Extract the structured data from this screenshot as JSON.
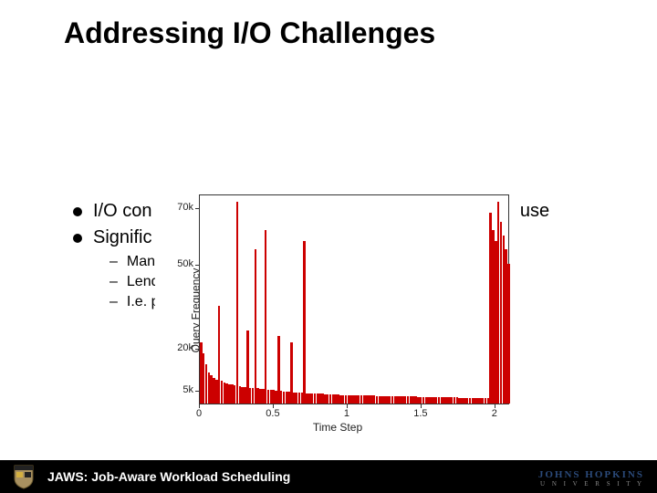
{
  "title": "Addressing I/O Challenges",
  "bullets": {
    "b1_left": "I/O con",
    "b1_right": "ent use",
    "b2_left": "Signific",
    "sub1": "Many",
    "sub2": "Lend",
    "sub3": "I.e. p"
  },
  "footer": {
    "text": "JAWS: Job-Aware Workload Scheduling",
    "logo_top": "JOHNS HOPKINS",
    "logo_bot": "U N I V E R S I T Y"
  },
  "chart": {
    "type": "bar",
    "x_title": "Time Step",
    "y_title": "Query Frequency",
    "xlim": [
      0,
      2.1
    ],
    "ylim": [
      0,
      75000
    ],
    "x_ticks": [
      0,
      0.5,
      1,
      1.5,
      2
    ],
    "x_tick_labels": [
      "0",
      "0.5",
      "1",
      "1.5",
      "2"
    ],
    "y_ticks": [
      5000,
      20000,
      50000,
      70000
    ],
    "y_tick_labels": [
      "5k",
      "20k",
      "50k",
      "70k"
    ],
    "bar_color": "#cc0000",
    "background_color": "#ffffff",
    "border_color": "#333333",
    "n_bars": 120,
    "values": [
      22000,
      18000,
      14000,
      11000,
      10000,
      9000,
      8500,
      35000,
      8000,
      7500,
      7200,
      7000,
      6800,
      6600,
      72000,
      6200,
      6000,
      5900,
      26000,
      5700,
      5600,
      55000,
      5400,
      5300,
      5200,
      62000,
      5000,
      4900,
      4800,
      4700,
      24000,
      4500,
      4400,
      4300,
      4200,
      22000,
      4000,
      3950,
      3900,
      3850,
      58000,
      3750,
      3700,
      3650,
      3600,
      3550,
      3500,
      3450,
      3400,
      3350,
      3300,
      3250,
      3200,
      3150,
      3100,
      3050,
      3000,
      2980,
      2960,
      2940,
      2920,
      2900,
      2880,
      2860,
      2840,
      2820,
      2800,
      2780,
      2760,
      2740,
      2720,
      2700,
      2680,
      2660,
      2640,
      2620,
      2600,
      2580,
      2560,
      2540,
      2520,
      2500,
      2480,
      2460,
      2440,
      2420,
      2400,
      2380,
      2360,
      2340,
      2320,
      2300,
      2280,
      2260,
      2240,
      2220,
      2200,
      2180,
      2160,
      2140,
      2120,
      2100,
      2080,
      2060,
      2040,
      2020,
      2000,
      1980,
      1960,
      1940,
      1920,
      1900,
      68000,
      62000,
      58000,
      72000,
      65000,
      60000,
      55000,
      50000
    ]
  },
  "colors": {
    "bg": "#ffffff",
    "text": "#000000",
    "footer_bg": "#000000",
    "footer_text": "#ffffff",
    "logo_blue": "#2b4a7a"
  }
}
